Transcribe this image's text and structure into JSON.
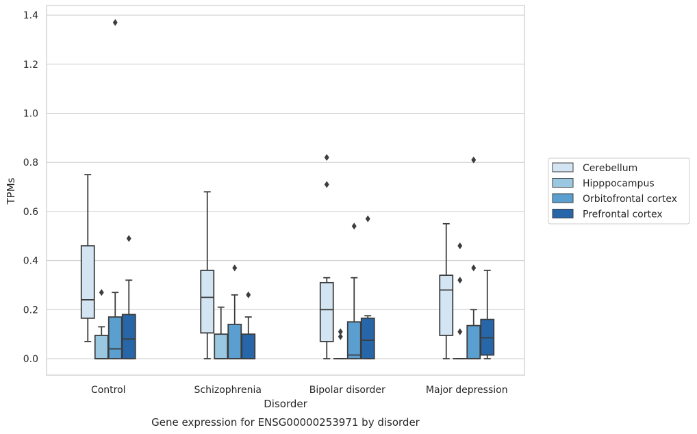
{
  "chart_data": {
    "type": "box",
    "xlabel": "Disorder",
    "ylabel": "TPMs",
    "caption": "Gene expression for ENSG00000253971 by disorder",
    "ylim": [
      -0.067,
      1.44
    ],
    "yticks": [
      "0.0",
      "0.2",
      "0.4",
      "0.6",
      "0.8",
      "1.0",
      "1.2",
      "1.4"
    ],
    "grid": "horizontal",
    "legend_position": "right",
    "categories": [
      "Control",
      "Schizophrenia",
      "Bipolar disorder",
      "Major depression"
    ],
    "series": [
      {
        "name": "Cerebellum",
        "color": "#d3e4f3",
        "boxes": [
          {
            "q1": 0.165,
            "median": 0.24,
            "q3": 0.46,
            "whislo": 0.07,
            "whishi": 0.75,
            "fliers": []
          },
          {
            "q1": 0.105,
            "median": 0.25,
            "q3": 0.36,
            "whislo": 0.0,
            "whishi": 0.68,
            "fliers": []
          },
          {
            "q1": 0.07,
            "median": 0.2,
            "q3": 0.31,
            "whislo": 0.0,
            "whishi": 0.33,
            "fliers": [
              0.71,
              0.82
            ]
          },
          {
            "q1": 0.095,
            "median": 0.28,
            "q3": 0.34,
            "whislo": 0.0,
            "whishi": 0.55,
            "fliers": []
          }
        ]
      },
      {
        "name": "Hipppocampus",
        "color": "#9ac8e0",
        "boxes": [
          {
            "q1": 0.0,
            "median": 0.0,
            "q3": 0.095,
            "whislo": 0.0,
            "whishi": 0.13,
            "fliers": [
              0.27
            ]
          },
          {
            "q1": 0.0,
            "median": 0.0,
            "q3": 0.1,
            "whislo": 0.0,
            "whishi": 0.21,
            "fliers": []
          },
          {
            "q1": 0.0,
            "median": 0.0,
            "q3": 0.0,
            "whislo": 0.0,
            "whishi": 0.0,
            "fliers": [
              0.09,
              0.11
            ]
          },
          {
            "q1": 0.0,
            "median": 0.0,
            "q3": 0.0,
            "whislo": 0.0,
            "whishi": 0.0,
            "fliers": [
              0.11,
              0.32,
              0.46
            ]
          }
        ]
      },
      {
        "name": "Orbitofrontal cortex",
        "color": "#5a9fcf",
        "boxes": [
          {
            "q1": 0.0,
            "median": 0.04,
            "q3": 0.17,
            "whislo": 0.0,
            "whishi": 0.27,
            "fliers": [
              1.37
            ]
          },
          {
            "q1": 0.0,
            "median": 0.0,
            "q3": 0.14,
            "whislo": 0.0,
            "whishi": 0.26,
            "fliers": [
              0.37
            ]
          },
          {
            "q1": 0.0,
            "median": 0.015,
            "q3": 0.15,
            "whislo": 0.0,
            "whishi": 0.33,
            "fliers": [
              0.54
            ]
          },
          {
            "q1": 0.0,
            "median": 0.0,
            "q3": 0.135,
            "whislo": 0.0,
            "whishi": 0.2,
            "fliers": [
              0.37,
              0.81
            ]
          }
        ]
      },
      {
        "name": "Prefrontal cortex",
        "color": "#2766a9",
        "boxes": [
          {
            "q1": 0.0,
            "median": 0.08,
            "q3": 0.18,
            "whislo": 0.0,
            "whishi": 0.32,
            "fliers": [
              0.49
            ]
          },
          {
            "q1": 0.0,
            "median": 0.0,
            "q3": 0.1,
            "whislo": 0.0,
            "whishi": 0.17,
            "fliers": [
              0.26
            ]
          },
          {
            "q1": 0.0,
            "median": 0.075,
            "q3": 0.165,
            "whislo": 0.0,
            "whishi": 0.175,
            "fliers": [
              0.57
            ]
          },
          {
            "q1": 0.015,
            "median": 0.085,
            "q3": 0.16,
            "whislo": 0.0,
            "whishi": 0.36,
            "fliers": []
          }
        ]
      }
    ]
  }
}
